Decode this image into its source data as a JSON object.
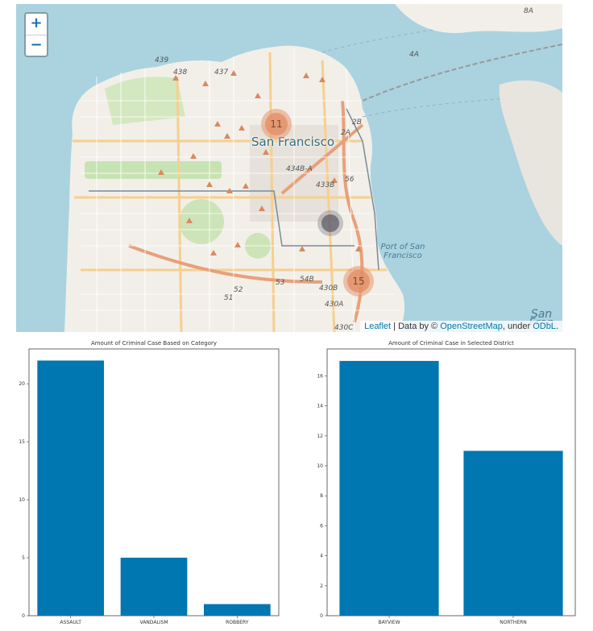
{
  "map": {
    "zoom_in_label": "+",
    "zoom_out_label": "−",
    "city_label": "San Francisco",
    "bay_labels": [
      "Port of San Francisco",
      "San Fran"
    ],
    "road_labels": [
      "439",
      "438",
      "437",
      "434B-A",
      "433B",
      "2B",
      "2A",
      "4A",
      "8A",
      "56",
      "52",
      "51",
      "53",
      "54B",
      "430B",
      "430A",
      "430C"
    ],
    "clusters": [
      {
        "count": "11",
        "color": "orange"
      },
      {
        "count": "",
        "color": "gray"
      },
      {
        "count": "15",
        "color": "orange"
      }
    ],
    "attribution": {
      "leaflet": "Leaflet",
      "sep": " | Data by © ",
      "osm": "OpenStreetMap",
      "under": ", under ",
      "odbl": "ODbL",
      "end": "."
    }
  },
  "charts": {
    "category": {
      "title": "Amount of Criminal Case Based on Category",
      "type": "bar",
      "categories": [
        "ASSAULT",
        "VANDALISM",
        "ROBBERY"
      ],
      "values": [
        22,
        5,
        1
      ],
      "yticks": [
        "0",
        "5",
        "10",
        "15",
        "20"
      ],
      "ylim": [
        0,
        23
      ],
      "color": "#0077b0"
    },
    "district": {
      "title": "Amount of Criminal Case in Selected District",
      "type": "bar",
      "categories": [
        "BAYVIEW",
        "NORTHERN"
      ],
      "values": [
        17,
        11
      ],
      "yticks": [
        "0",
        "2",
        "4",
        "6",
        "8",
        "10",
        "12",
        "14",
        "16"
      ],
      "ylim": [
        0,
        17.8
      ],
      "color": "#0077b0"
    }
  },
  "chart_data": [
    {
      "type": "bar",
      "title": "Amount of Criminal Case Based on Category",
      "categories": [
        "ASSAULT",
        "VANDALISM",
        "ROBBERY"
      ],
      "values": [
        22,
        5,
        1
      ],
      "xlabel": "",
      "ylabel": "",
      "ylim": [
        0,
        23
      ]
    },
    {
      "type": "bar",
      "title": "Amount of Criminal Case in Selected District",
      "categories": [
        "BAYVIEW",
        "NORTHERN"
      ],
      "values": [
        17,
        11
      ],
      "xlabel": "",
      "ylabel": "",
      "ylim": [
        0,
        17.8
      ]
    }
  ]
}
